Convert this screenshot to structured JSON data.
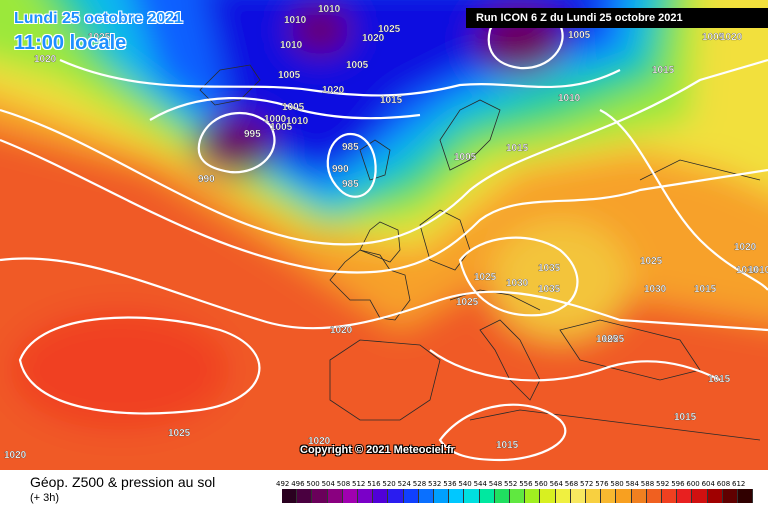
{
  "header": {
    "date_line": "Lundi 25 octobre 2021",
    "time_line": "11:00 locale",
    "run_info": "Run ICON 6 Z du Lundi 25 octobre 2021"
  },
  "map": {
    "copyright": "Copyright © 2021 Meteociel.fr",
    "isobar_labels": [
      "1025",
      "1020",
      "1010",
      "1010",
      "1025",
      "1020",
      "1005",
      "1005",
      "1010",
      "1005",
      "1020",
      "1005",
      "1015",
      "1010",
      "1005",
      "1000",
      "1010",
      "995",
      "1005",
      "990",
      "985",
      "990",
      "985",
      "1015",
      "1005",
      "1015",
      "1020",
      "1025",
      "1025",
      "1030",
      "1035",
      "1025",
      "1035",
      "1030",
      "1025",
      "1020",
      "1010",
      "1010",
      "1015",
      "1015",
      "1015",
      "1025",
      "1020",
      "1025",
      "1020",
      "1015",
      "1020"
    ]
  },
  "footer": {
    "title": "Géop. Z500 & pression au sol",
    "subtitle": "(+ 3h)",
    "scale_values": [
      "492",
      "496",
      "500",
      "504",
      "508",
      "512",
      "516",
      "520",
      "524",
      "528",
      "532",
      "536",
      "540",
      "544",
      "548",
      "552",
      "556",
      "560",
      "564",
      "568",
      "572",
      "576",
      "580",
      "584",
      "588",
      "592",
      "596",
      "600",
      "604",
      "608",
      "612"
    ],
    "scale_colors": [
      "#2a0020",
      "#4a0040",
      "#6a005a",
      "#8a0080",
      "#a000b0",
      "#7a00c8",
      "#5000d8",
      "#2a1cf0",
      "#1040ff",
      "#0a70ff",
      "#00a0ff",
      "#00c8ff",
      "#00e0e0",
      "#00e8a0",
      "#20e060",
      "#60e840",
      "#a0f020",
      "#d8f020",
      "#f0f040",
      "#f8e860",
      "#f8d040",
      "#f8b830",
      "#f8a020",
      "#f08020",
      "#f06020",
      "#f04020",
      "#e82020",
      "#d01010",
      "#a00000",
      "#600000",
      "#300000"
    ]
  }
}
